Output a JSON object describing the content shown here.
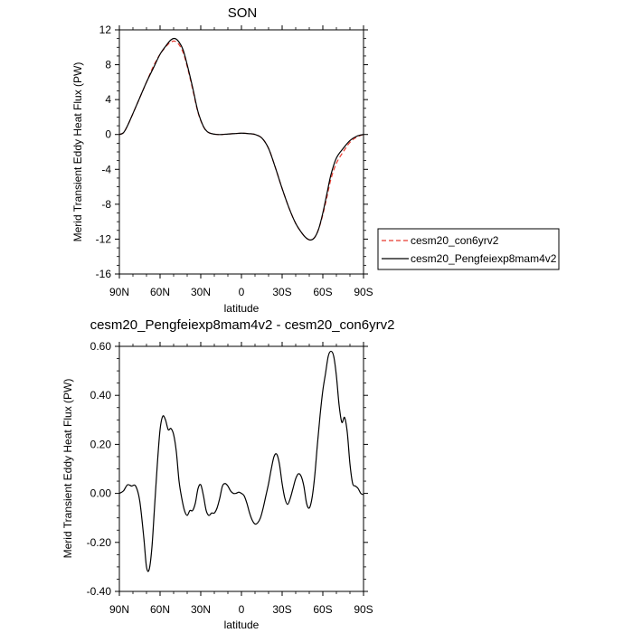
{
  "chart_data": [
    {
      "type": "line",
      "title": "SON",
      "xlabel": "latitude",
      "ylabel": "Merid Transient Eddy Heat Flux (PW)",
      "x_ticks": [
        90,
        60,
        30,
        0,
        -30,
        -60,
        -90
      ],
      "x_tick_labels": [
        "90N",
        "60N",
        "30N",
        "0",
        "30S",
        "60S",
        "90S"
      ],
      "ylim": [
        -16,
        12
      ],
      "y_ticks": [
        12,
        8,
        4,
        0,
        -4,
        -8,
        -12,
        -16
      ],
      "y_tick_labels": [
        "12",
        "8",
        "4",
        "0",
        "-4",
        "-8",
        "-12",
        "-16"
      ],
      "legend": {
        "placement": "right",
        "entries": [
          {
            "label": "cesm20_con6yrv2",
            "color": "#e8392f",
            "dash": true
          },
          {
            "label": "cesm20_Pengfeiexp8mam4v2",
            "color": "#000000",
            "dash": false
          }
        ]
      },
      "x": [
        90,
        87,
        84,
        80,
        75,
        70,
        65,
        60,
        55,
        52,
        49,
        46,
        43,
        40,
        36,
        32,
        28,
        25,
        22,
        18,
        14,
        10,
        5,
        0,
        -5,
        -10,
        -15,
        -20,
        -25,
        -30,
        -35,
        -40,
        -45,
        -48,
        -51,
        -54,
        -57,
        -60,
        -63,
        -66,
        -70,
        -75,
        -80,
        -85,
        -90
      ],
      "series": [
        {
          "name": "cesm20_con6yrv2",
          "color": "#e8392f",
          "values": [
            0.0,
            0.2,
            1.0,
            2.4,
            4.2,
            6.0,
            7.8,
            9.2,
            10.2,
            10.6,
            10.7,
            10.3,
            9.4,
            7.8,
            5.2,
            2.5,
            0.9,
            0.3,
            0.1,
            0.0,
            0.0,
            0.05,
            0.1,
            0.15,
            0.1,
            0.0,
            -0.4,
            -1.6,
            -3.8,
            -6.2,
            -8.4,
            -10.2,
            -11.4,
            -11.9,
            -12.1,
            -11.8,
            -10.8,
            -9.2,
            -7.2,
            -5.1,
            -3.3,
            -2.0,
            -0.9,
            -0.3,
            0.0
          ]
        },
        {
          "name": "cesm20_Pengfeiexp8mam4v2",
          "color": "#000000",
          "values": [
            0.0,
            0.2,
            1.0,
            2.4,
            4.2,
            6.0,
            7.6,
            9.2,
            10.3,
            10.85,
            11.0,
            10.6,
            9.7,
            8.0,
            5.4,
            2.6,
            0.9,
            0.3,
            0.1,
            0.0,
            0.0,
            0.05,
            0.1,
            0.15,
            0.1,
            0.0,
            -0.4,
            -1.6,
            -3.8,
            -6.2,
            -8.4,
            -10.2,
            -11.4,
            -11.9,
            -12.1,
            -11.8,
            -10.8,
            -9.0,
            -6.8,
            -4.6,
            -2.7,
            -1.6,
            -0.7,
            -0.2,
            0.0
          ]
        }
      ]
    },
    {
      "type": "line",
      "title": "cesm20_Pengfeiexp8mam4v2 - cesm20_con6yrv2",
      "xlabel": "latitude",
      "ylabel": "Merid Transient Eddy Heat Flux (PW)",
      "x_ticks": [
        90,
        60,
        30,
        0,
        -30,
        -60,
        -90
      ],
      "x_tick_labels": [
        "90N",
        "60N",
        "30N",
        "0",
        "30S",
        "60S",
        "90S"
      ],
      "ylim": [
        -0.4,
        0.6
      ],
      "y_ticks": [
        0.6,
        0.4,
        0.2,
        0.0,
        -0.2,
        -0.4
      ],
      "y_tick_labels": [
        "0.60",
        "0.40",
        "0.20",
        "0.00",
        "-0.20",
        "-0.40"
      ],
      "x": [
        90,
        87,
        84,
        81,
        78,
        75,
        72,
        70,
        68,
        66,
        64,
        62,
        60,
        58,
        56,
        54,
        52,
        50,
        48,
        46,
        44,
        42,
        40,
        38,
        36,
        34,
        32,
        30,
        28,
        26,
        24,
        22,
        20,
        18,
        16,
        14,
        12,
        10,
        8,
        6,
        4,
        2,
        0,
        -2,
        -4,
        -6,
        -8,
        -10,
        -12,
        -14,
        -16,
        -18,
        -20,
        -22,
        -24,
        -26,
        -28,
        -30,
        -32,
        -34,
        -36,
        -38,
        -40,
        -42,
        -44,
        -46,
        -48,
        -50,
        -52,
        -54,
        -56,
        -58,
        -60,
        -62,
        -64,
        -66,
        -68,
        -70,
        -72,
        -74,
        -76,
        -78,
        -80,
        -82,
        -84,
        -86,
        -88,
        -90
      ],
      "series": [
        {
          "name": "",
          "color": "#000000",
          "values": [
            0.0,
            0.01,
            0.035,
            0.03,
            0.03,
            -0.03,
            -0.18,
            -0.3,
            -0.31,
            -0.22,
            -0.05,
            0.12,
            0.26,
            0.315,
            0.3,
            0.26,
            0.265,
            0.24,
            0.17,
            0.05,
            -0.02,
            -0.07,
            -0.09,
            -0.07,
            -0.07,
            -0.04,
            0.02,
            0.035,
            -0.01,
            -0.07,
            -0.09,
            -0.08,
            -0.08,
            -0.06,
            -0.02,
            0.03,
            0.04,
            0.03,
            0.01,
            0.0,
            0.0,
            0.005,
            0.0,
            -0.01,
            -0.04,
            -0.08,
            -0.11,
            -0.125,
            -0.12,
            -0.1,
            -0.06,
            -0.01,
            0.04,
            0.1,
            0.15,
            0.16,
            0.12,
            0.04,
            -0.02,
            -0.045,
            -0.02,
            0.02,
            0.06,
            0.08,
            0.07,
            0.03,
            -0.04,
            -0.06,
            -0.02,
            0.07,
            0.2,
            0.32,
            0.42,
            0.49,
            0.56,
            0.58,
            0.56,
            0.48,
            0.36,
            0.29,
            0.31,
            0.25,
            0.12,
            0.04,
            0.03,
            0.02,
            0.0,
            -0.005
          ]
        }
      ]
    }
  ]
}
